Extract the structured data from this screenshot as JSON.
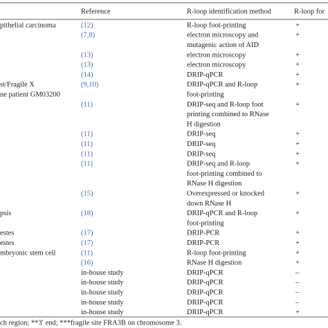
{
  "table": {
    "header": [
      "Reference",
      "R-loop identification method",
      "R-loop for"
    ],
    "rows": [
      {
        "stub": [
          "pithelial carcinoma"
        ],
        "reference": "(12)",
        "method": [
          "R-loop foot-printing"
        ],
        "result": "+"
      },
      {
        "stub": [],
        "reference": "(7,8)",
        "method": [
          "electron microscopy and",
          "mutagenic action of AID"
        ],
        "result": "+"
      },
      {
        "stub": [],
        "reference": "(13)",
        "method": [
          "electron microscopy"
        ],
        "result": "+"
      },
      {
        "stub": [],
        "reference": "(13)",
        "method": [
          "electron microscopy"
        ],
        "result": "+"
      },
      {
        "stub": [],
        "reference": "(14)",
        "method": [
          "DRIP-qPCR"
        ],
        "result": "+"
      },
      {
        "stub": [
          "st/Fragile X",
          "ne patient GM03200"
        ],
        "reference": "(9,10)",
        "method": [
          "DRIP-qPCR and R-loop",
          "foot-printing"
        ],
        "result": "+"
      },
      {
        "stub": [],
        "reference": "(11)",
        "method": [
          "DRIP-seq and R-loop foot",
          "printing combined to RNase",
          "H digestion"
        ],
        "result": "+"
      },
      {
        "stub": [],
        "reference": "(11)",
        "method": [
          "DRIP-seq"
        ],
        "result": "+"
      },
      {
        "stub": [],
        "reference": "(11)",
        "method": [
          "DRIP-seq"
        ],
        "result": "+"
      },
      {
        "stub": [],
        "reference": "(11)",
        "method": [
          "DRIP-seq"
        ],
        "result": "+"
      },
      {
        "stub": [],
        "reference": "(11)",
        "method": [
          "DRIP-seq and R-loop",
          "foot-printing combined to",
          "RNase H digestion"
        ],
        "result": "+"
      },
      {
        "stub": [],
        "reference": "(15)",
        "method": [
          "Overexpressed or knocked",
          "down RNase H"
        ],
        "result": "+"
      },
      {
        "stub": [
          "psis"
        ],
        "reference": "(18)",
        "method": [
          "DRIP-qPCR and R-loop",
          "foot-printing"
        ],
        "result": "+"
      },
      {
        "stub": [
          "estes"
        ],
        "reference": "(17)",
        "method": [
          "DRIP-PCR"
        ],
        "result": "+"
      },
      {
        "stub": [
          "estes"
        ],
        "reference": "(17)",
        "method": [
          "DRIP-PCR"
        ],
        "result": "+"
      },
      {
        "stub": [
          "mbryonic stem cell"
        ],
        "reference": "(11)",
        "method": [
          "R-loop foot-printing"
        ],
        "result": "+"
      },
      {
        "stub": [],
        "reference": "(16)",
        "method": [
          "RNase H digestion"
        ],
        "result": "+"
      },
      {
        "stub": [],
        "reference": "in-house study",
        "method": [
          "DRIP-qPCR"
        ],
        "result": "–"
      },
      {
        "stub": [],
        "reference": "in-house study",
        "method": [
          "DRIP-qPCR"
        ],
        "result": "–"
      },
      {
        "stub": [],
        "reference": "in-house study",
        "method": [
          "DRIP-qPCR"
        ],
        "result": "–"
      },
      {
        "stub": [],
        "reference": "in-house study",
        "method": [
          "DRIP-qPCR"
        ],
        "result": "–"
      },
      {
        "stub": [],
        "reference": "in-house study",
        "method": [
          "DRIP-qPCR"
        ],
        "result": "+"
      }
    ],
    "footnote": "ch region; **3′ end; ***fragile site FRA3B on chromosome 3."
  }
}
